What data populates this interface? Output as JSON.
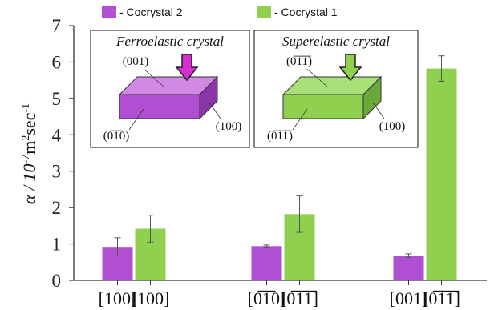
{
  "chart_data": {
    "type": "bar",
    "categories": [
      "[100]",
      "[0̅1̅0]",
      "[001]"
    ],
    "series_categories": [
      [
        "[100]",
        "[100]"
      ],
      [
        "[0̅1̅0]",
        "[0̅1̅1̅]"
      ],
      [
        "[001]",
        "[0̅1̅1̅]"
      ]
    ],
    "series": [
      {
        "name": "- Cocrystal 2",
        "color": "#b04fd1",
        "values": [
          0.92,
          0.94,
          0.68
        ],
        "errors": [
          0.25,
          0.03,
          0.05
        ]
      },
      {
        "name": "- Cocrystal 1",
        "color": "#8fd14f",
        "values": [
          1.42,
          1.82,
          5.82
        ],
        "errors": [
          0.37,
          0.5,
          0.35
        ]
      }
    ],
    "ylabel": "α / 10⁻⁷m²sec⁻¹",
    "ylabel_parts": {
      "base": "α / 10",
      "exp1": "-7",
      "mid": "m",
      "exp2": "2",
      "tail": "sec",
      "exp3": "-1"
    },
    "ylim": [
      0,
      7
    ],
    "yticks": [
      "0",
      "1",
      "2",
      "3",
      "4",
      "5",
      "6",
      "7"
    ],
    "legend": "top",
    "grid": false,
    "insets": [
      {
        "title": "Ferroelastic crystal",
        "color": "#b04fd1",
        "labels": [
          "(001)",
          "(100)",
          "(0̅1̅0)"
        ]
      },
      {
        "title": "Superelastic crystal",
        "color": "#8fd14f",
        "labels": [
          "(0̅1̅1̅)",
          "(100)",
          "(0̅1̅1̅)"
        ]
      }
    ]
  }
}
